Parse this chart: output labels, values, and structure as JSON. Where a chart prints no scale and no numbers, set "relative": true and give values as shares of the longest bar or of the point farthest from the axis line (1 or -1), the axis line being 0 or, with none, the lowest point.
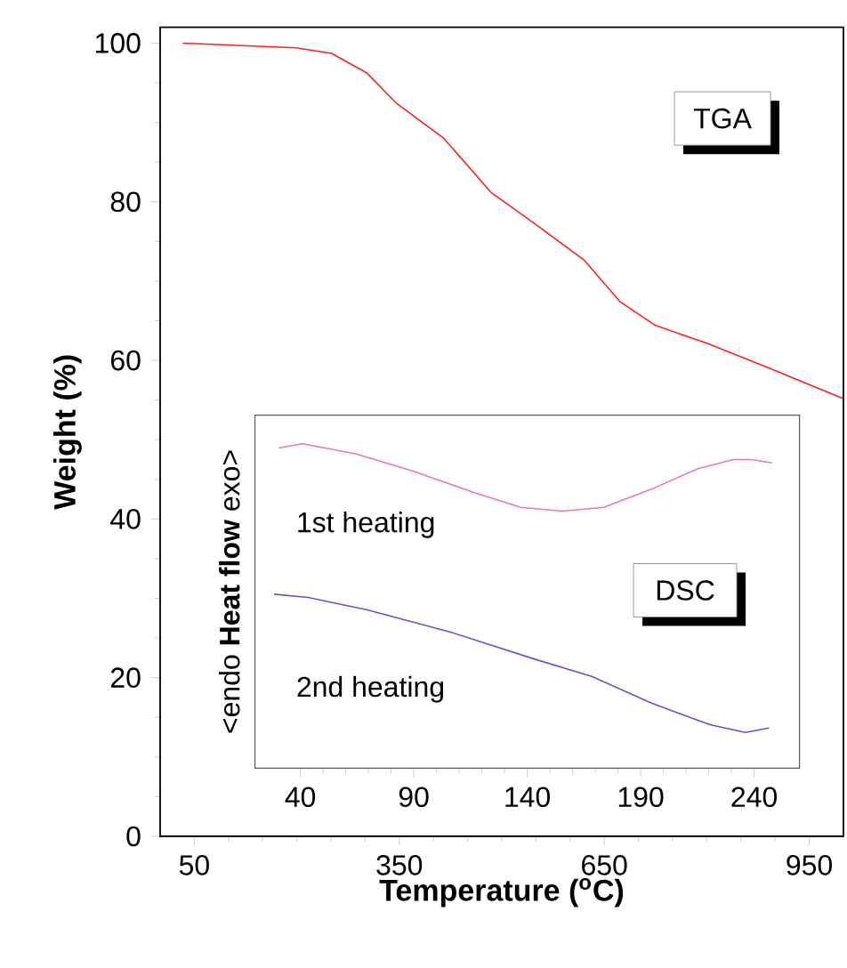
{
  "chart_data": [
    {
      "type": "line",
      "xlabel": "Temperature ($^{o}$C)",
      "ylabel": "Weight (%)",
      "xlim": [
        0,
        1000
      ],
      "ylim": [
        0,
        102
      ],
      "xticks": [
        50,
        350,
        650,
        950
      ],
      "yticks": [
        0,
        20,
        40,
        60,
        80,
        100
      ],
      "annotations": [
        "TGA"
      ],
      "line_style": "solid",
      "marker": "none",
      "series": [
        {
          "color": "#ff2020",
          "x": [
            33,
            199,
            251,
            303,
            346,
            415,
            484,
            544,
            621,
            673,
            725,
            802,
            889,
            999
          ],
          "values": [
            100,
            99.4,
            98.7,
            96.2,
            92.4,
            88.0,
            81.2,
            77.5,
            72.6,
            67.4,
            64.4,
            62.1,
            59.1,
            55.2
          ]
        }
      ]
    },
    {
      "type": "line",
      "relative": true,
      "ylabel": "<endo **Heat flow** exo>",
      "xlim": [
        20,
        260
      ],
      "xticks": [
        40,
        90,
        140,
        190,
        240
      ],
      "tick_labels": "x",
      "annotations": [
        "DSC"
      ],
      "line_style": "solid",
      "marker": "none",
      "series": [
        {
          "name": "1st heating",
          "color": "#e878b8",
          "x": [
            30.5,
            40.9,
            64.3,
            90.3,
            116.4,
            137.2,
            155.5,
            173.7,
            194.5,
            215.3,
            230.9,
            238.8,
            247.9
          ],
          "values": [
            0.987,
            1,
            0.969,
            0.914,
            0.85,
            0.804,
            0.792,
            0.804,
            0.859,
            0.923,
            0.951,
            0.951,
            0.941
          ]
        },
        {
          "name": "2nd heating",
          "color": "#5a5ad0",
          "x": [
            28.4,
            43.4,
            69.5,
            105.9,
            142.4,
            168.4,
            194.5,
            220.5,
            236.2,
            246.6
          ],
          "values": [
            0.536,
            0.526,
            0.488,
            0.42,
            0.338,
            0.283,
            0.201,
            0.134,
            0.11,
            0.124
          ]
        }
      ]
    }
  ]
}
